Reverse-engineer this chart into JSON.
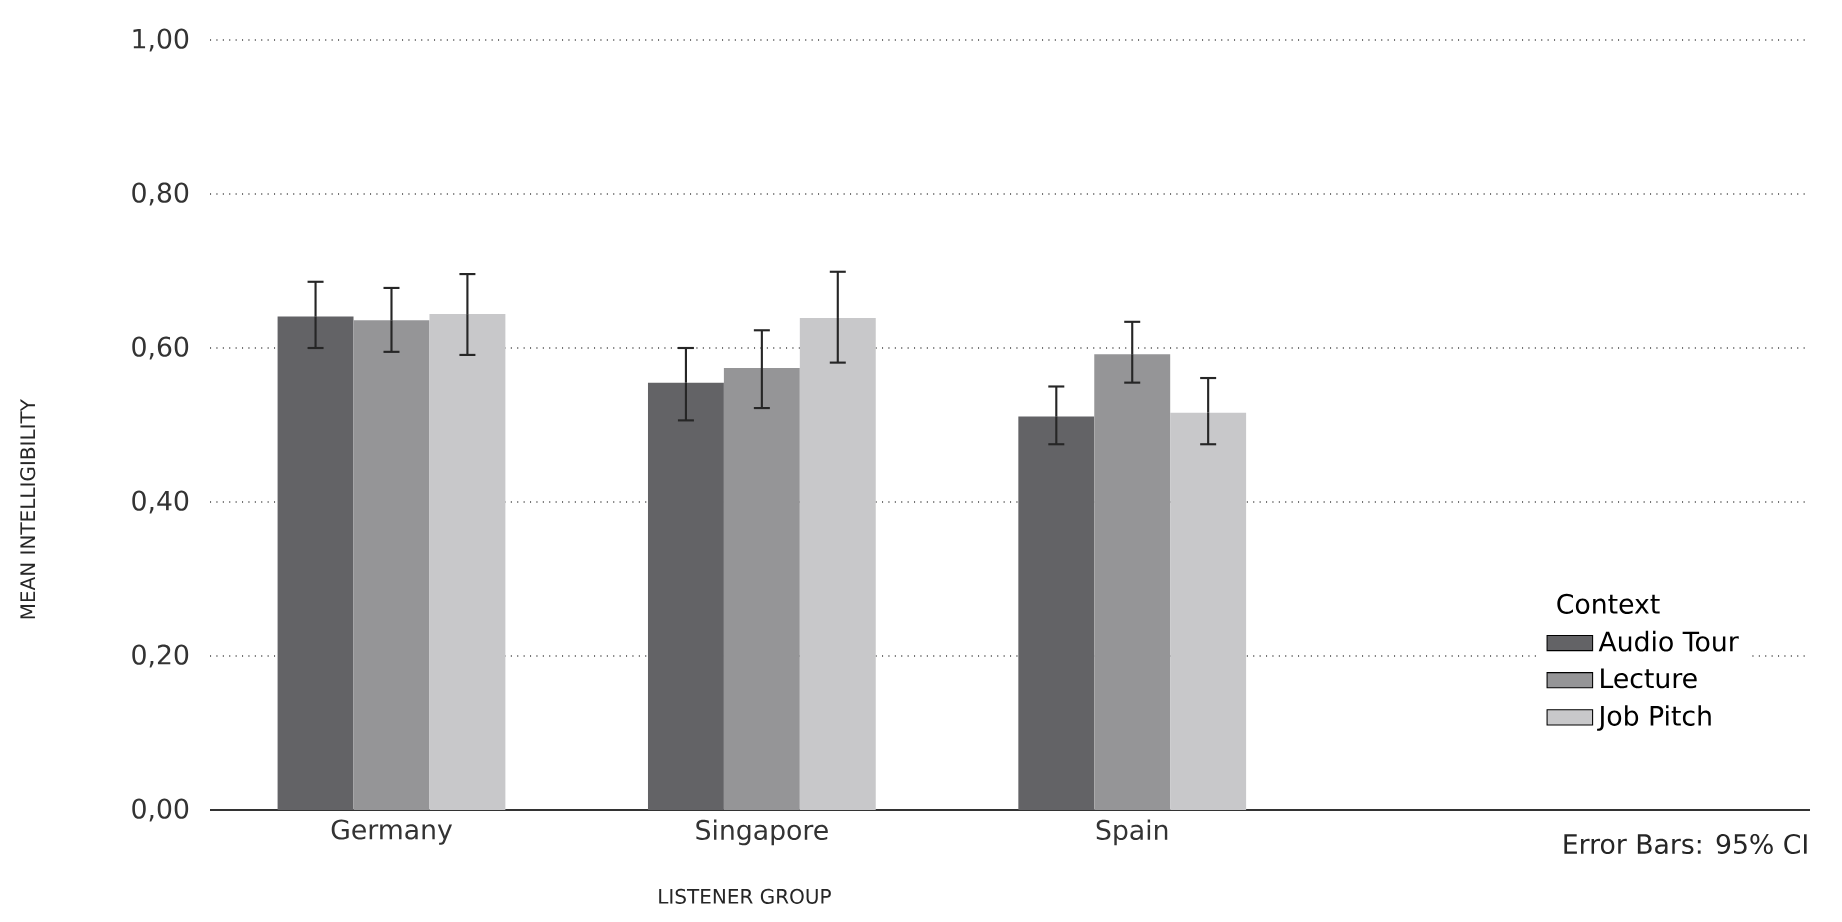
{
  "chart_data": {
    "type": "bar",
    "categories": [
      "Germany",
      "Singapore",
      "Spain"
    ],
    "xlabel": "LISTENER GROUP",
    "ylabel": "MEAN INTELLIGIBILITY",
    "legend_title": "Context",
    "series": [
      {
        "name": "Audio Tour",
        "color": "#636366",
        "values": [
          0.641,
          0.555,
          0.511
        ],
        "errors": [
          [
            0.6,
            0.686
          ],
          [
            0.506,
            0.6
          ],
          [
            0.475,
            0.55
          ]
        ]
      },
      {
        "name": "Lecture",
        "color": "#959597",
        "values": [
          0.636,
          0.574,
          0.592
        ],
        "errors": [
          [
            0.595,
            0.678
          ],
          [
            0.522,
            0.623
          ],
          [
            0.555,
            0.634
          ]
        ]
      },
      {
        "name": "Job Pitch",
        "color": "#c8c8ca",
        "values": [
          0.644,
          0.639,
          0.516
        ],
        "errors": [
          [
            0.591,
            0.696
          ],
          [
            0.581,
            0.699
          ],
          [
            0.475,
            0.561
          ]
        ]
      }
    ],
    "ylim": [
      0,
      1
    ],
    "yticks": [
      {
        "value": 0,
        "label": "0,00"
      },
      {
        "value": 0.2,
        "label": "0,20"
      },
      {
        "value": 0.4,
        "label": "0,40"
      },
      {
        "value": 0.6,
        "label": "0,60"
      },
      {
        "value": 0.8,
        "label": "0,80"
      },
      {
        "value": 1,
        "label": "1,00"
      }
    ],
    "grid": "y",
    "legend": "bottom right",
    "annotations": [
      "Error Bars: 95% CI"
    ]
  }
}
